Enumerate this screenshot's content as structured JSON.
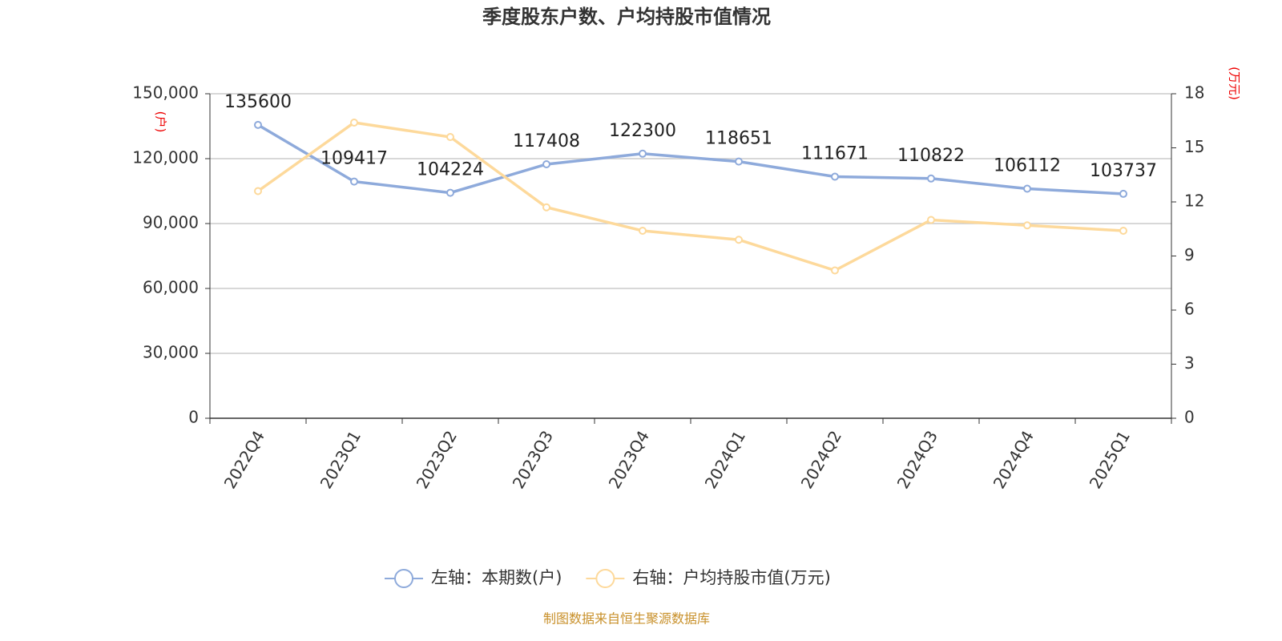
{
  "chart_data": {
    "type": "line",
    "title": "季度股东户数、户均持股市值情况",
    "y_label": "(户)",
    "y2_label": "(万元)",
    "source": "制图数据来自恒生聚源数据库",
    "categories": [
      "2022Q4",
      "2023Q1",
      "2023Q2",
      "2023Q3",
      "2023Q4",
      "2024Q1",
      "2024Q2",
      "2024Q3",
      "2024Q4",
      "2025Q1"
    ],
    "series": [
      {
        "name": "左轴：本期数(户)",
        "color": "#8eaadb",
        "values": [
          135600,
          109417,
          104224,
          117408,
          122300,
          118651,
          111671,
          110822,
          106112,
          103737
        ]
      },
      {
        "name": "右轴：户均持股市值(万元)",
        "color": "#fdd99b",
        "axis": "y2",
        "values": [
          12.6,
          16.4,
          15.6,
          11.7,
          10.4,
          9.9,
          8.2,
          11.0,
          10.7,
          10.4
        ]
      }
    ],
    "ylim": [
      0,
      150000
    ],
    "yticks": [
      0,
      {
        "value": 30000,
        "label": "30,000"
      },
      {
        "value": 60000,
        "label": "60,000"
      },
      {
        "value": 90000,
        "label": "90,000"
      },
      {
        "value": 120000,
        "label": "120,000"
      },
      {
        "value": 150000,
        "label": "150,000"
      }
    ],
    "y2lim": [
      0,
      18
    ],
    "y2ticks": [
      0,
      3,
      6,
      9,
      12,
      15,
      18
    ],
    "grid": true
  }
}
